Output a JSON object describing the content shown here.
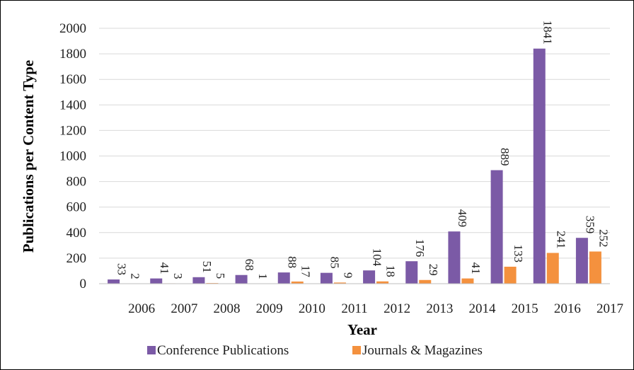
{
  "chart_data": {
    "type": "bar",
    "xlabel": "Year",
    "ylabel": "Publications per Content Type",
    "ylim": [
      0,
      2000
    ],
    "y_ticks": [
      "0",
      "200",
      "400",
      "600",
      "800",
      "1000",
      "1200",
      "1400",
      "1600",
      "1800",
      "2000"
    ],
    "categories": [
      "2006",
      "2007",
      "2008",
      "2009",
      "2010",
      "2011",
      "2012",
      "2013",
      "2014",
      "2015",
      "2016",
      "2017"
    ],
    "series": [
      {
        "name": "Conference Publications",
        "color": "#7b5aa6",
        "values": [
          33,
          41,
          51,
          68,
          88,
          85,
          104,
          176,
          409,
          889,
          1841,
          359
        ]
      },
      {
        "name": "Journals & Magazines",
        "color": "#f4913e",
        "values": [
          2,
          3,
          5,
          1,
          17,
          9,
          18,
          29,
          41,
          133,
          241,
          252
        ]
      }
    ],
    "grid": true,
    "legend_position": "bottom"
  }
}
